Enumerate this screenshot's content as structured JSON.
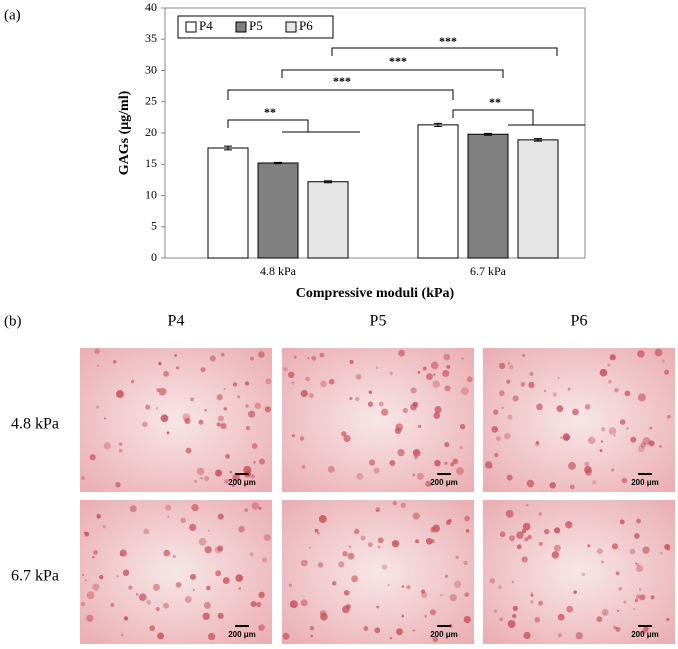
{
  "panel_labels": [
    "(a)",
    "(b)"
  ],
  "chart_data": {
    "type": "bar",
    "categories": [
      "4.8 kPa",
      "6.7 kPa"
    ],
    "series": [
      {
        "name": "P4",
        "color": "#ffffff",
        "values": [
          17.6,
          21.3
        ],
        "errors": [
          0.3,
          0.25
        ]
      },
      {
        "name": "P5",
        "color": "#808080",
        "values": [
          15.2,
          19.8
        ],
        "errors": [
          0.1,
          0.15
        ]
      },
      {
        "name": "P6",
        "color": "#e6e6e6",
        "values": [
          12.2,
          18.9
        ],
        "errors": [
          0.15,
          0.2
        ]
      }
    ],
    "ylim": [
      0,
      40
    ],
    "yticks": [
      0,
      5,
      10,
      15,
      20,
      25,
      30,
      35,
      40
    ],
    "x_label": "Compressive moduli (kPa)",
    "y_label": "GAGs (μg/ml)",
    "legend": "top-left",
    "annotations": [
      "**",
      "***",
      "***",
      "***",
      "**"
    ]
  },
  "micrographs": {
    "columns": [
      "P4",
      "P5",
      "P6"
    ],
    "rows": [
      "4.8 kPa",
      "6.7 kPa"
    ],
    "scale_bar": "200 μm"
  }
}
